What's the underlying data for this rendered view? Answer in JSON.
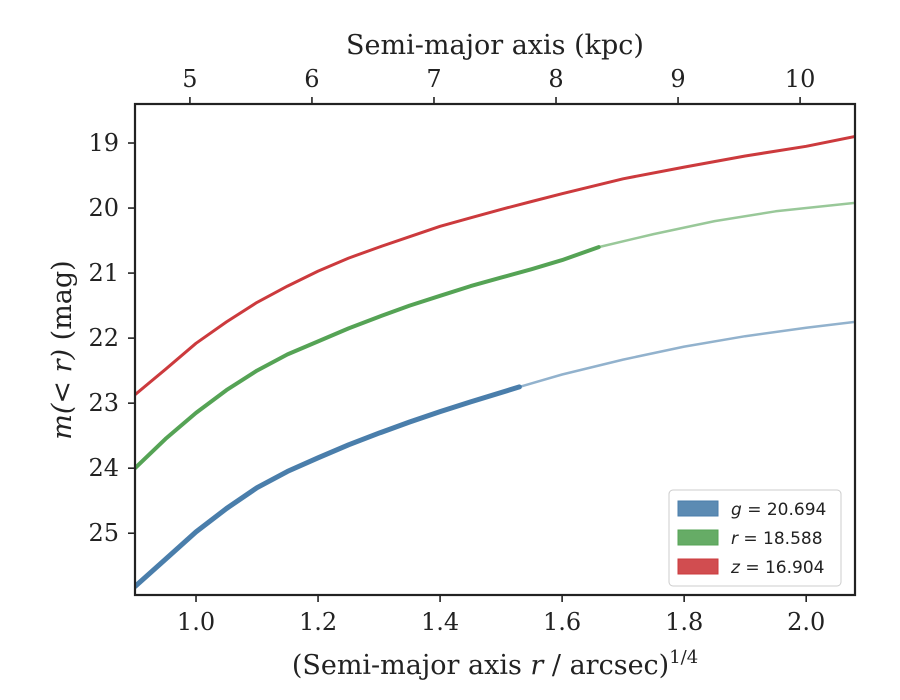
{
  "chart_data": {
    "type": "line",
    "xlabel": {
      "prefix": "(Semi-major axis ",
      "var": "r",
      "suffix": " / arcsec)",
      "sup": "1/4"
    },
    "ylabel": {
      "pre": "m",
      "mid": "(< r)",
      "post": " (mag)"
    },
    "x2label": "Semi-major axis (kpc)",
    "xlim": [
      0.9,
      2.08
    ],
    "ylim": [
      25.95,
      18.4
    ],
    "y_inverted": true,
    "x_ticks": [
      "1.0",
      "1.2",
      "1.4",
      "1.6",
      "1.8",
      "2.0"
    ],
    "x_tick_values": [
      1.0,
      1.2,
      1.4,
      1.6,
      1.8,
      2.0
    ],
    "y_ticks": [
      "19",
      "20",
      "21",
      "22",
      "23",
      "24",
      "25"
    ],
    "y_tick_values": [
      19,
      20,
      21,
      22,
      23,
      24,
      25
    ],
    "x2_ticks": [
      "5",
      "6",
      "7",
      "8",
      "9",
      "10"
    ],
    "x2_tick_positions": [
      0.99,
      1.19,
      1.39,
      1.59,
      1.79,
      1.99
    ],
    "grid": false,
    "legend_position": "bottom-right",
    "series": [
      {
        "name": "g",
        "legend_var": "g",
        "legend_value": "= 20.694",
        "color": "#4a7eab",
        "x": [
          0.9,
          0.95,
          1.0,
          1.05,
          1.1,
          1.15,
          1.2,
          1.25,
          1.3,
          1.35,
          1.4,
          1.45,
          1.53
        ],
        "y": [
          25.82,
          25.4,
          24.98,
          24.62,
          24.3,
          24.05,
          23.84,
          23.64,
          23.46,
          23.29,
          23.13,
          22.98,
          22.75
        ],
        "x_ext": [
          1.53,
          1.6,
          1.7,
          1.8,
          1.9,
          2.0,
          2.08
        ],
        "y_ext": [
          22.75,
          22.56,
          22.33,
          22.13,
          21.97,
          21.84,
          21.75
        ]
      },
      {
        "name": "r",
        "legend_var": "r",
        "legend_value": "= 18.588",
        "color": "#55a355",
        "x": [
          0.9,
          0.95,
          1.0,
          1.05,
          1.1,
          1.15,
          1.2,
          1.25,
          1.3,
          1.35,
          1.4,
          1.45,
          1.5,
          1.55,
          1.6,
          1.66
        ],
        "y": [
          24.0,
          23.55,
          23.15,
          22.8,
          22.5,
          22.25,
          22.05,
          21.85,
          21.67,
          21.5,
          21.35,
          21.2,
          21.07,
          20.94,
          20.8,
          20.6
        ],
        "x_ext": [
          1.66,
          1.75,
          1.85,
          1.95,
          2.08
        ],
        "y_ext": [
          20.6,
          20.4,
          20.2,
          20.05,
          19.92
        ]
      },
      {
        "name": "z",
        "legend_var": "z",
        "legend_value": "= 16.904",
        "color": "#cc3a3d",
        "x": [
          0.9,
          0.95,
          1.0,
          1.05,
          1.1,
          1.15,
          1.2,
          1.25,
          1.3,
          1.35,
          1.4,
          1.45,
          1.5,
          1.55,
          1.6,
          1.7,
          1.8,
          1.9,
          2.0,
          2.08
        ],
        "y": [
          22.87,
          22.48,
          22.08,
          21.75,
          21.45,
          21.2,
          20.97,
          20.77,
          20.6,
          20.44,
          20.28,
          20.15,
          20.02,
          19.9,
          19.78,
          19.55,
          19.37,
          19.2,
          19.05,
          18.9
        ],
        "x_ext": [],
        "y_ext": []
      }
    ]
  }
}
